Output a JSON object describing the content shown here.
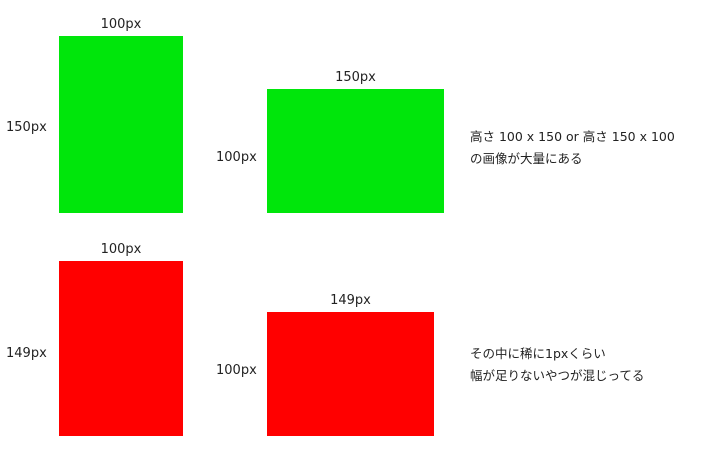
{
  "colors": {
    "ok": "#00e60b",
    "bad": "#ff0000"
  },
  "examples": [
    {
      "width_label": "100px",
      "height_label": "150px",
      "status": "ok"
    },
    {
      "width_label": "150px",
      "height_label": "100px",
      "status": "ok"
    },
    {
      "width_label": "100px",
      "height_label": "149px",
      "status": "bad"
    },
    {
      "width_label": "149px",
      "height_label": "100px",
      "status": "bad"
    }
  ],
  "notes": {
    "top": [
      "高さ 100 x 150 or 高さ 150 x 100",
      "の画像が大量にある"
    ],
    "bottom": [
      "その中に稀に1pxくらい",
      "幅が足りないやつが混じってる"
    ]
  }
}
